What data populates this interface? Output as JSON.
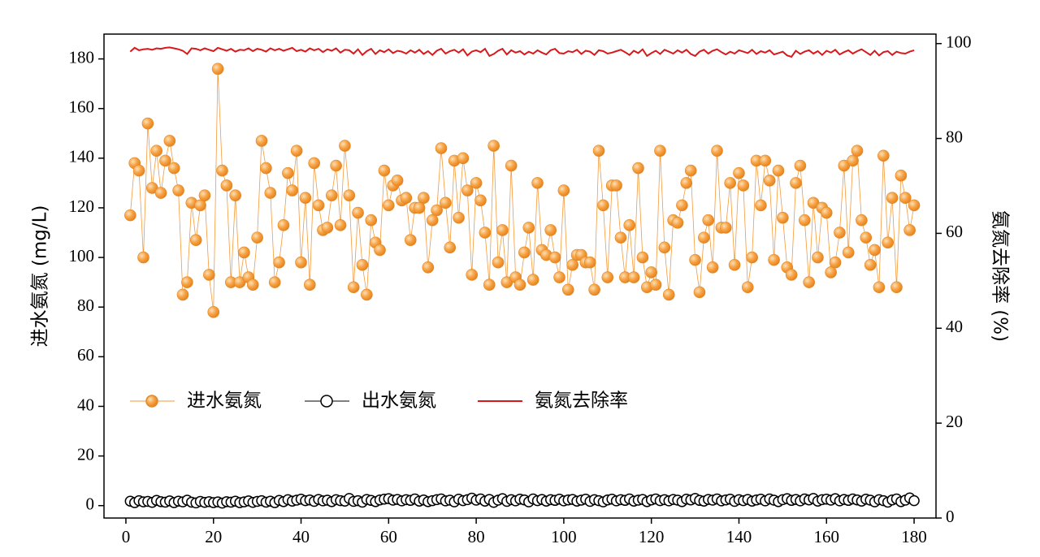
{
  "chart_data": {
    "type": "line",
    "xlim": [
      -5,
      185
    ],
    "xticks": [
      0,
      20,
      40,
      60,
      80,
      100,
      120,
      140,
      160,
      180
    ],
    "ylim": [
      -5,
      190
    ],
    "yticks": [
      0,
      20,
      40,
      60,
      80,
      100,
      120,
      140,
      160,
      180
    ],
    "y2lim": [
      0,
      102
    ],
    "y2ticks": [
      0,
      20,
      40,
      60,
      80,
      100
    ],
    "ylabel": "进水氨氮 (mg/L)",
    "y2label": "氨氮去除率 (%)",
    "x": [
      1,
      2,
      3,
      4,
      5,
      6,
      7,
      8,
      9,
      10,
      11,
      12,
      13,
      14,
      15,
      16,
      17,
      18,
      19,
      20,
      21,
      22,
      23,
      24,
      25,
      26,
      27,
      28,
      29,
      30,
      31,
      32,
      33,
      34,
      35,
      36,
      37,
      38,
      39,
      40,
      41,
      42,
      43,
      44,
      45,
      46,
      47,
      48,
      49,
      50,
      51,
      52,
      53,
      54,
      55,
      56,
      57,
      58,
      59,
      60,
      61,
      62,
      63,
      64,
      65,
      66,
      67,
      68,
      69,
      70,
      71,
      72,
      73,
      74,
      75,
      76,
      77,
      78,
      79,
      80,
      81,
      82,
      83,
      84,
      85,
      86,
      87,
      88,
      89,
      90,
      91,
      92,
      93,
      94,
      95,
      96,
      97,
      98,
      99,
      100,
      101,
      102,
      103,
      104,
      105,
      106,
      107,
      108,
      109,
      110,
      111,
      112,
      113,
      114,
      115,
      116,
      117,
      118,
      119,
      120,
      121,
      122,
      123,
      124,
      125,
      126,
      127,
      128,
      129,
      130,
      131,
      132,
      133,
      134,
      135,
      136,
      137,
      138,
      139,
      140,
      141,
      142,
      143,
      144,
      145,
      146,
      147,
      148,
      149,
      150,
      151,
      152,
      153,
      154,
      155,
      156,
      157,
      158,
      159,
      160,
      161,
      162,
      163,
      164,
      165,
      166,
      167,
      168,
      169,
      170,
      171,
      172,
      173,
      174,
      175,
      176,
      177,
      178,
      179,
      180
    ],
    "series": [
      {
        "name": "进水氨氮",
        "color": "#f39a3c",
        "marker": "filled",
        "values": [
          117,
          138,
          135,
          100,
          154,
          128,
          143,
          126,
          139,
          147,
          136,
          127,
          85,
          90,
          122,
          107,
          121,
          125,
          93,
          78,
          176,
          135,
          129,
          90,
          125,
          90,
          102,
          92,
          89,
          108,
          147,
          136,
          126,
          90,
          98,
          113,
          134,
          127,
          143,
          98,
          124,
          89,
          138,
          121,
          111,
          112,
          125,
          137,
          113,
          145,
          125,
          88,
          118,
          97,
          85,
          115,
          106,
          103,
          135,
          121,
          129,
          131,
          123,
          124,
          107,
          120,
          120,
          124,
          96,
          115,
          119,
          144,
          122,
          104,
          139,
          116,
          140,
          127,
          93,
          130,
          123,
          110,
          89,
          145,
          98,
          111,
          90,
          137,
          92,
          89,
          102,
          112,
          91,
          130,
          103,
          101,
          111,
          100,
          92,
          127,
          87,
          97,
          101,
          101,
          98,
          98,
          87,
          143,
          121,
          92,
          129,
          129,
          108,
          92,
          113,
          92,
          136,
          100,
          88,
          94,
          89,
          143,
          104,
          85,
          115,
          114,
          121,
          130,
          135,
          99,
          86,
          108,
          115,
          96,
          143,
          112,
          112,
          130,
          97,
          134,
          129,
          88,
          100,
          139,
          121,
          139,
          131,
          99,
          135,
          116,
          96,
          93,
          130,
          137,
          115,
          90,
          122,
          100,
          120,
          118,
          94,
          98,
          110,
          137,
          102,
          139,
          143,
          115,
          108,
          97,
          103,
          88,
          141,
          106,
          124,
          88,
          133,
          124,
          111,
          121
        ]
      },
      {
        "name": "出水氨氮",
        "color": "#000000",
        "marker": "open",
        "values": [
          1.8,
          1.2,
          2.0,
          1.5,
          1.7,
          1.3,
          2.1,
          1.6,
          1.4,
          1.9,
          1.2,
          1.8,
          1.5,
          2.2,
          1.4,
          1.1,
          1.7,
          1.3,
          1.6,
          1.2,
          1.5,
          1.0,
          1.6,
          1.4,
          1.8,
          1.2,
          1.5,
          1.9,
          1.3,
          1.7,
          2.0,
          1.4,
          1.8,
          1.2,
          2.1,
          1.6,
          2.4,
          1.8,
          2.2,
          2.6,
          2.0,
          2.3,
          1.7,
          2.5,
          1.9,
          2.2,
          1.6,
          2.4,
          2.0,
          1.8,
          2.9,
          1.7,
          2.0,
          1.4,
          2.5,
          2.1,
          1.6,
          2.3,
          2.6,
          2.8,
          2.2,
          2.5,
          1.9,
          2.4,
          2.1,
          2.7,
          1.8,
          2.3,
          1.6,
          2.0,
          2.4,
          2.7,
          1.9,
          2.2,
          1.5,
          2.6,
          2.0,
          2.4,
          3.0,
          2.2,
          2.7,
          1.8,
          2.5,
          1.3,
          2.2,
          2.8,
          1.7,
          2.4,
          1.9,
          2.6,
          2.3,
          1.5,
          2.7,
          2.0,
          2.5,
          1.8,
          2.4,
          2.1,
          2.6,
          1.9,
          2.3,
          2.5,
          1.8,
          2.2,
          2.6,
          1.7,
          2.4,
          2.0,
          1.5,
          2.3,
          2.6,
          1.9,
          2.4,
          2.1,
          2.7,
          1.8,
          2.2,
          2.5,
          1.6,
          2.3,
          2.7,
          2.0,
          2.4,
          1.9,
          2.5,
          2.2,
          1.6,
          2.6,
          2.3,
          2.9,
          2.1,
          1.8,
          2.5,
          2.2,
          2.7,
          1.9,
          2.3,
          2.6,
          1.7,
          2.4,
          2.0,
          2.5,
          1.8,
          2.3,
          2.6,
          1.9,
          2.7,
          2.2,
          1.6,
          2.4,
          2.8,
          2.1,
          2.5,
          1.9,
          2.7,
          2.3,
          2.9,
          1.8,
          2.4,
          2.6,
          2.2,
          2.8,
          1.9,
          2.5,
          2.1,
          2.7,
          2.3,
          1.8,
          2.6,
          2.2,
          1.5,
          2.4,
          2.0,
          1.4,
          2.3,
          2.7,
          1.6,
          2.2,
          3.1,
          2.0
        ]
      },
      {
        "name": "氨氮去除率",
        "color": "#d7191c",
        "marker": "none",
        "axis": "y2",
        "values": [
          98.3,
          99.1,
          98.6,
          98.8,
          98.9,
          98.7,
          99.0,
          98.9,
          99.1,
          99.2,
          99.0,
          98.8,
          98.5,
          97.8,
          99.0,
          98.9,
          98.6,
          99.0,
          98.7,
          98.4,
          99.1,
          98.8,
          98.5,
          98.9,
          98.3,
          98.7,
          98.6,
          99.0,
          98.4,
          98.9,
          98.7,
          98.3,
          99.0,
          98.6,
          98.9,
          98.5,
          98.8,
          99.1,
          98.4,
          98.7,
          98.3,
          99.0,
          98.6,
          98.9,
          98.2,
          98.8,
          98.5,
          99.0,
          98.1,
          98.7,
          98.6,
          97.9,
          98.8,
          97.6,
          98.4,
          98.9,
          97.8,
          98.6,
          98.2,
          98.8,
          98.0,
          98.5,
          98.3,
          97.9,
          98.6,
          98.1,
          98.7,
          97.8,
          98.4,
          97.6,
          98.5,
          98.9,
          97.9,
          98.4,
          98.7,
          98.1,
          98.8,
          97.5,
          98.3,
          98.6,
          98.2,
          98.9,
          97.4,
          97.8,
          98.5,
          98.9,
          97.7,
          98.6,
          98.1,
          98.4,
          97.7,
          98.3,
          97.9,
          98.6,
          98.1,
          97.7,
          98.6,
          98.9,
          98.0,
          97.9,
          98.4,
          98.2,
          98.7,
          97.8,
          98.5,
          98.3,
          97.6,
          98.6,
          98.4,
          97.9,
          98.1,
          98.4,
          98.7,
          98.2,
          97.6,
          98.5,
          98.0,
          98.8,
          97.4,
          98.0,
          98.5,
          97.8,
          98.7,
          98.3,
          97.9,
          98.6,
          98.1,
          98.7,
          97.8,
          97.4,
          98.3,
          98.7,
          97.9,
          98.5,
          98.8,
          98.2,
          97.7,
          98.3,
          97.9,
          98.6,
          98.3,
          98.0,
          98.7,
          97.8,
          98.4,
          98.1,
          98.6,
          97.7,
          98.0,
          98.3,
          97.5,
          97.2,
          98.5,
          97.8,
          98.3,
          98.6,
          97.9,
          98.4,
          97.6,
          98.5,
          98.1,
          98.7,
          97.7,
          98.2,
          98.6,
          97.9,
          98.4,
          98.8,
          98.2,
          97.6,
          98.5,
          97.5,
          98.2,
          98.4,
          97.6,
          98.3,
          98.0,
          97.9,
          98.3,
          98.6
        ]
      }
    ]
  }
}
